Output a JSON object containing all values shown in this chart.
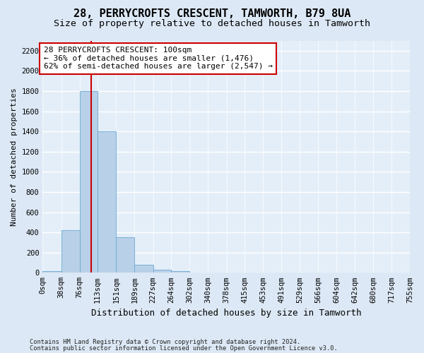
{
  "title1": "28, PERRYCROFTS CRESCENT, TAMWORTH, B79 8UA",
  "title2": "Size of property relative to detached houses in Tamworth",
  "xlabel": "Distribution of detached houses by size in Tamworth",
  "ylabel": "Number of detached properties",
  "footer1": "Contains HM Land Registry data © Crown copyright and database right 2024.",
  "footer2": "Contains public sector information licensed under the Open Government Licence v3.0.",
  "bin_edges": [
    0,
    38,
    76,
    113,
    151,
    189,
    227,
    264,
    302,
    340,
    378,
    415,
    453,
    491,
    529,
    566,
    604,
    642,
    680,
    717,
    755
  ],
  "bar_heights": [
    15,
    420,
    1800,
    1400,
    350,
    80,
    30,
    15,
    0,
    0,
    0,
    0,
    0,
    0,
    0,
    0,
    0,
    0,
    0,
    0
  ],
  "bar_color": "#b8d0e8",
  "bar_edge_color": "#6aaad4",
  "property_size": 100,
  "property_line_color": "#cc0000",
  "annotation_line1": "28 PERRYCROFTS CRESCENT: 100sqm",
  "annotation_line2": "← 36% of detached houses are smaller (1,476)",
  "annotation_line3": "62% of semi-detached houses are larger (2,547) →",
  "annotation_box_color": "#ffffff",
  "annotation_box_edge_color": "#cc0000",
  "ylim": [
    0,
    2300
  ],
  "yticks": [
    0,
    200,
    400,
    600,
    800,
    1000,
    1200,
    1400,
    1600,
    1800,
    2000,
    2200
  ],
  "bg_color": "#dce8f5",
  "plot_bg_color": "#e4eef8",
  "grid_color": "#ffffff",
  "title1_fontsize": 11,
  "title2_fontsize": 9.5,
  "ylabel_fontsize": 8,
  "xlabel_fontsize": 9,
  "tick_fontsize": 7.5,
  "annotation_fontsize": 8
}
